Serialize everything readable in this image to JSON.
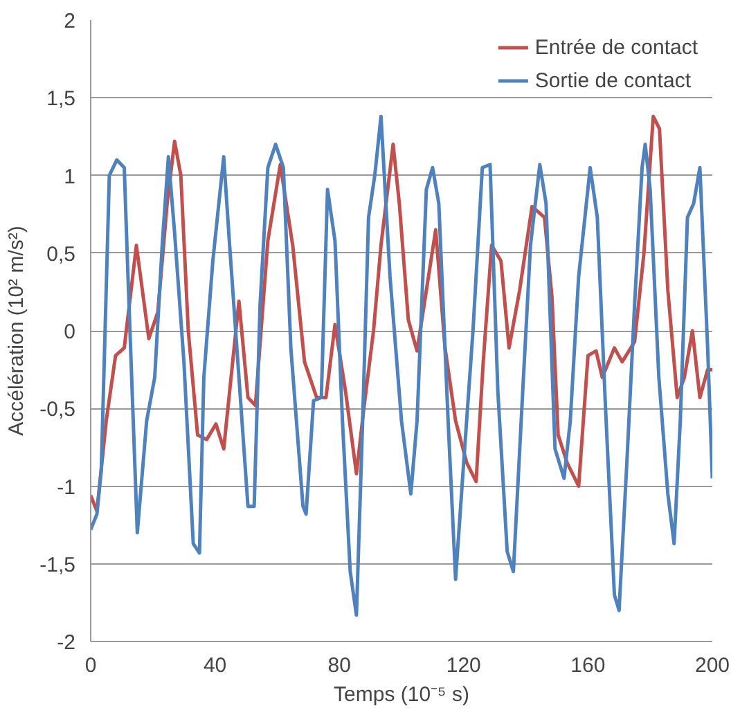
{
  "chart_data": {
    "type": "line",
    "xlabel": "Temps (10⁻⁵ s)",
    "ylabel": "Accélération (10² m/s²)",
    "xlim": [
      0,
      200
    ],
    "xticks": [
      0,
      40,
      80,
      120,
      160,
      200
    ],
    "ylim": [
      -2,
      2
    ],
    "yticks": [
      {
        "value": -2,
        "label": "-2"
      },
      {
        "value": -1.5,
        "label": "-1,5"
      },
      {
        "value": -1,
        "label": "-1"
      },
      {
        "value": -0.5,
        "label": "-0,5"
      },
      {
        "value": 0,
        "label": "0"
      },
      {
        "value": 0.5,
        "label": "0,5"
      },
      {
        "value": 1,
        "label": "1"
      },
      {
        "value": 1.5,
        "label": "1,5"
      },
      {
        "value": 2,
        "label": "2"
      }
    ],
    "grid": "y",
    "legend": "top right",
    "marker": "none",
    "line_style": "solid",
    "series": [
      {
        "name": "Entrée de contact",
        "color": "#c0504d",
        "x": [
          0,
          2,
          5,
          8,
          10.8,
          14.7,
          18.7,
          21.6,
          24.6,
          27,
          29,
          31.4,
          34.4,
          37.3,
          40.3,
          42.8,
          44.7,
          47.7,
          50.6,
          53,
          57,
          61,
          65,
          68.8,
          72.7,
          75.7,
          78.6,
          82,
          85.5,
          88,
          91,
          93.4,
          97.3,
          99.3,
          102.2,
          105,
          108,
          111,
          114,
          117.4,
          121,
          124,
          126.3,
          129,
          132,
          134.6,
          138,
          142,
          146,
          148.4,
          150.4,
          153.3,
          157,
          160,
          162.6,
          164.6,
          168.5,
          171,
          175,
          178,
          181,
          183,
          185.7,
          188.7,
          191,
          193.6,
          196,
          198.5,
          200
        ],
        "values": [
          -1.06,
          -1.16,
          -0.58,
          -0.16,
          -0.11,
          0.55,
          -0.05,
          0.12,
          0.82,
          1.22,
          1.0,
          0.0,
          -0.67,
          -0.7,
          -0.6,
          -0.76,
          -0.39,
          0.19,
          -0.43,
          -0.48,
          0.58,
          1.07,
          0.55,
          -0.2,
          -0.43,
          -0.43,
          0.04,
          -0.39,
          -0.92,
          -0.48,
          0.0,
          0.55,
          1.2,
          0.82,
          0.07,
          -0.13,
          0.26,
          0.65,
          -0.11,
          -0.58,
          -0.85,
          -0.97,
          -0.2,
          0.55,
          0.45,
          -0.11,
          0.26,
          0.8,
          0.73,
          0.22,
          -0.67,
          -0.85,
          -1.0,
          -0.16,
          -0.13,
          -0.3,
          -0.11,
          -0.2,
          -0.07,
          0.5,
          1.38,
          1.3,
          0.26,
          -0.43,
          -0.3,
          0.0,
          -0.43,
          -0.25,
          -0.25
        ]
      },
      {
        "name": "Sortie de contact",
        "color": "#4f81bd",
        "x": [
          0,
          2,
          3.4,
          6,
          8.4,
          10.8,
          12,
          15,
          18,
          20.6,
          23,
          25,
          27,
          30,
          33,
          35,
          36.4,
          39.3,
          42.8,
          44.7,
          47.7,
          50.6,
          52.6,
          54.5,
          57,
          59.5,
          62,
          64.4,
          68.3,
          69.3,
          71.7,
          74.2,
          76.2,
          78.6,
          81,
          83.5,
          85.5,
          87.5,
          89.4,
          91.4,
          93.4,
          96.3,
          100,
          103,
          105,
          108,
          110,
          112,
          115,
          117.4,
          120,
          123,
          126,
          128.5,
          131,
          134,
          136,
          139,
          141.5,
          144.5,
          146.5,
          149.4,
          152.3,
          154.3,
          157,
          160.7,
          163,
          165.6,
          168.5,
          170,
          172.5,
          175,
          177.4,
          178.4,
          180,
          182.8,
          185.7,
          187.7,
          189.7,
          192,
          194,
          196,
          198.5,
          200
        ],
        "values": [
          -1.28,
          -1.18,
          -0.9,
          1.0,
          1.1,
          1.05,
          0.35,
          -1.3,
          -0.58,
          -0.3,
          0.55,
          1.12,
          0.63,
          -0.2,
          -1.37,
          -1.43,
          -0.3,
          0.45,
          1.12,
          0.55,
          -0.3,
          -1.13,
          -1.13,
          0.17,
          1.05,
          1.2,
          1.05,
          -0.11,
          -1.13,
          -1.18,
          -0.45,
          -0.43,
          0.91,
          0.58,
          -0.58,
          -1.55,
          -1.83,
          -0.58,
          0.73,
          1.0,
          1.38,
          0.35,
          -0.58,
          -1.05,
          -0.58,
          0.91,
          1.05,
          0.82,
          -0.58,
          -1.6,
          -0.85,
          0.0,
          1.05,
          1.07,
          -0.39,
          -1.42,
          -1.55,
          -0.39,
          0.55,
          1.07,
          0.82,
          -0.76,
          -0.95,
          -0.58,
          0.35,
          1.05,
          0.73,
          -0.48,
          -1.7,
          -1.8,
          -0.85,
          0.17,
          1.05,
          1.2,
          0.91,
          -0.3,
          -1.05,
          -1.37,
          -0.58,
          0.73,
          0.82,
          1.05,
          -0.11,
          -0.95
        ]
      }
    ]
  }
}
